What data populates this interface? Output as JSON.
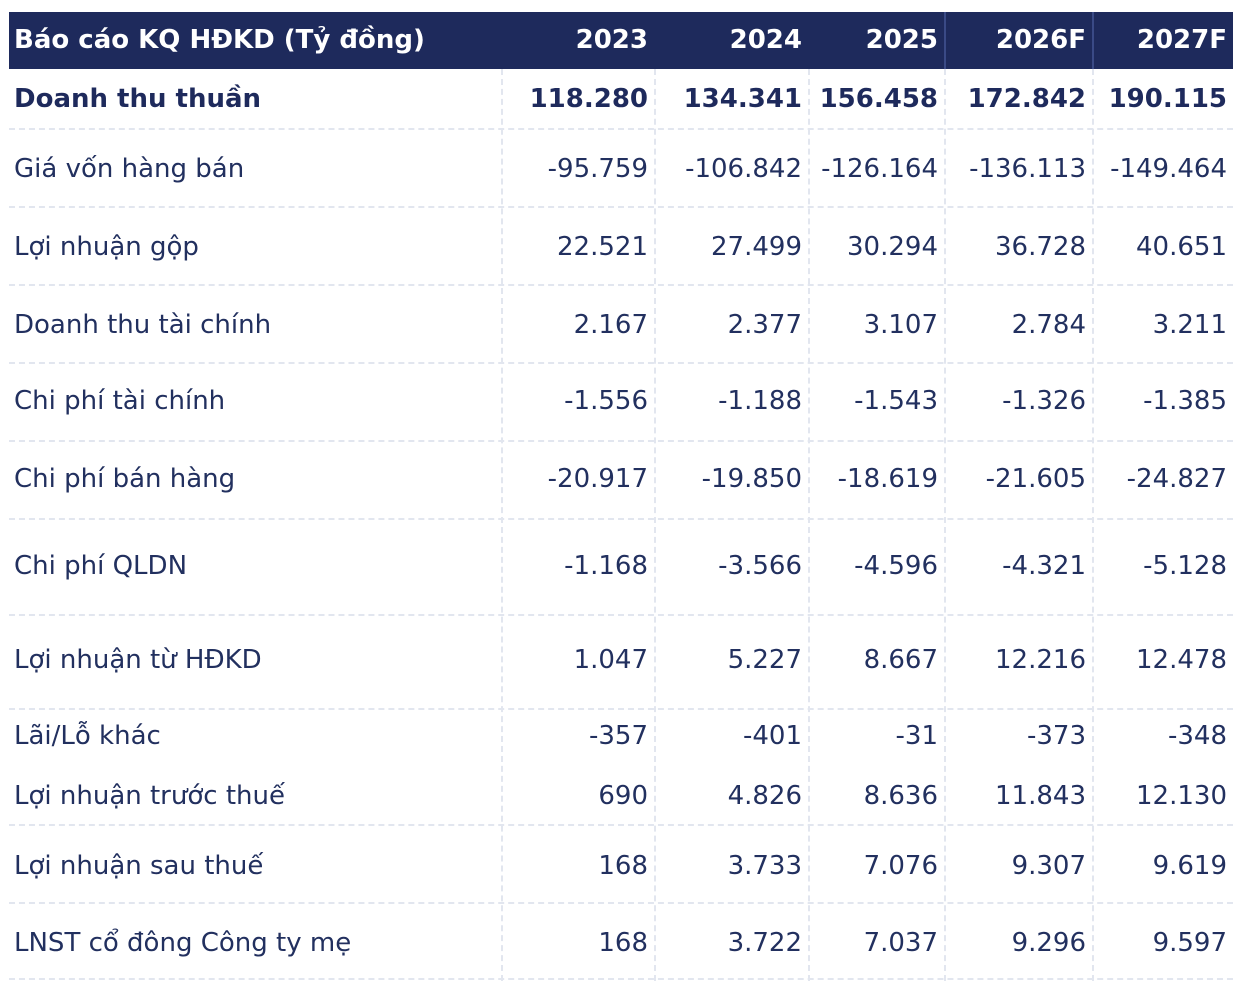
{
  "table": {
    "header": {
      "title": "Báo cáo KQ HĐKD (Tỷ đồng)",
      "years": [
        "2023",
        "2024",
        "2025",
        "2026F",
        "2027F"
      ]
    },
    "rows": [
      {
        "label": "Doanh thu thuần",
        "values": [
          "118.280",
          "134.341",
          "156.458",
          "172.842",
          "190.115"
        ]
      },
      {
        "label": "Giá vốn hàng bán",
        "values": [
          "-95.759",
          "-106.842",
          "-126.164",
          "-136.113",
          "-149.464"
        ]
      },
      {
        "label": "Lợi nhuận gộp",
        "values": [
          "22.521",
          "27.499",
          "30.294",
          "36.728",
          "40.651"
        ]
      },
      {
        "label": "Doanh thu tài chính",
        "values": [
          "2.167",
          "2.377",
          "3.107",
          "2.784",
          "3.211"
        ]
      },
      {
        "label": "Chi phí tài chính",
        "values": [
          "-1.556",
          "-1.188",
          "-1.543",
          "-1.326",
          "-1.385"
        ]
      },
      {
        "label": "Chi phí bán hàng",
        "values": [
          "-20.917",
          "-19.850",
          "-18.619",
          "-21.605",
          "-24.827"
        ]
      },
      {
        "label": "Chi phí QLDN",
        "values": [
          "-1.168",
          "-3.566",
          "-4.596",
          "-4.321",
          "-5.128"
        ]
      },
      {
        "label": "Lợi nhuận từ HĐKD",
        "values": [
          "1.047",
          "5.227",
          "8.667",
          "12.216",
          "12.478"
        ]
      },
      {
        "label": "Lãi/Lỗ khác",
        "values": [
          "-357",
          "-401",
          "-31",
          "-373",
          "-348"
        ]
      },
      {
        "label": "Lợi nhuận trước thuế",
        "values": [
          "690",
          "4.826",
          "8.636",
          "11.843",
          "12.130"
        ]
      },
      {
        "label": "Lợi nhuận sau thuế",
        "values": [
          "168",
          "3.733",
          "7.076",
          "9.307",
          "9.619"
        ]
      },
      {
        "label": "LNST cổ đông Công ty mẹ",
        "values": [
          "168",
          "3.722",
          "7.037",
          "9.296",
          "9.597"
        ]
      }
    ]
  }
}
